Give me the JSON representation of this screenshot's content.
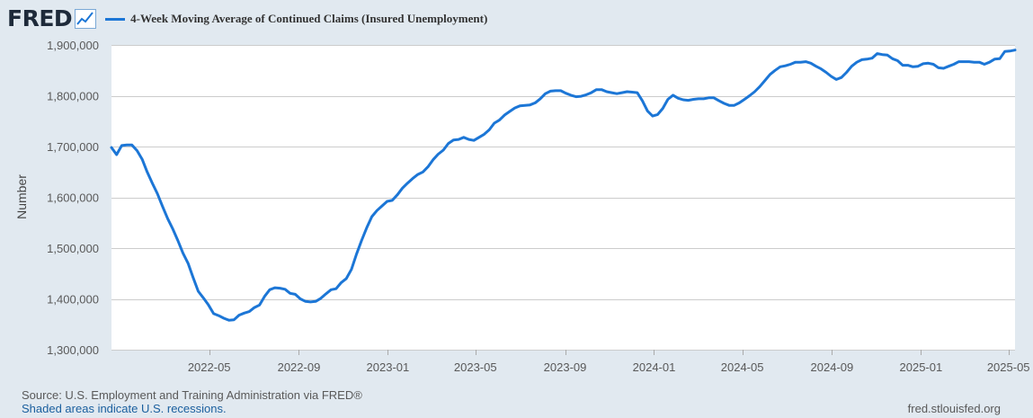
{
  "header": {
    "logo_text": "FRED",
    "logo_icon": "line-chart-icon",
    "legend_label": "4-Week Moving Average of Continued Claims (Insured Unemployment)"
  },
  "colors": {
    "series": "#1c76d6",
    "background": "#e1e9f0",
    "plot_background": "#ffffff",
    "grid": "#cccccc"
  },
  "footer": {
    "source": "Source: U.S. Employment and Training Administration via FRED®",
    "recessions_note": "Shaded areas indicate U.S. recessions.",
    "url": "fred.stlouisfed.org"
  },
  "chart_data": {
    "type": "line",
    "title": "4-Week Moving Average of Continued Claims (Insured Unemployment)",
    "xlabel": "",
    "ylabel": "Number",
    "ylim": [
      1300000,
      1900000
    ],
    "xlim": [
      "2021-12-18",
      "2025-05-10"
    ],
    "grid": true,
    "legend_position": "top-left",
    "y_ticks": [
      {
        "value": 1300000,
        "label": "1,300,000"
      },
      {
        "value": 1400000,
        "label": "1,400,000"
      },
      {
        "value": 1500000,
        "label": "1,500,000"
      },
      {
        "value": 1600000,
        "label": "1,600,000"
      },
      {
        "value": 1700000,
        "label": "1,700,000"
      },
      {
        "value": 1800000,
        "label": "1,800,000"
      },
      {
        "value": 1900000,
        "label": "1,900,000"
      }
    ],
    "x_ticks": [
      {
        "date": "2022-05-01",
        "label": "2022-05"
      },
      {
        "date": "2022-09-01",
        "label": "2022-09"
      },
      {
        "date": "2023-01-01",
        "label": "2023-01"
      },
      {
        "date": "2023-05-01",
        "label": "2023-05"
      },
      {
        "date": "2023-09-01",
        "label": "2023-09"
      },
      {
        "date": "2024-01-01",
        "label": "2024-01"
      },
      {
        "date": "2024-05-01",
        "label": "2024-05"
      },
      {
        "date": "2024-09-01",
        "label": "2024-09"
      },
      {
        "date": "2025-01-01",
        "label": "2025-01"
      },
      {
        "date": "2025-05-01",
        "label": "2025-05"
      }
    ],
    "series": [
      {
        "name": "4-Week Moving Average of Continued Claims (Insured Unemployment)",
        "points": [
          [
            "2021-12-18",
            1698000
          ],
          [
            "2021-12-25",
            1684000
          ],
          [
            "2022-01-01",
            1702000
          ],
          [
            "2022-01-08",
            1703000
          ],
          [
            "2022-01-15",
            1703000
          ],
          [
            "2022-01-22",
            1692000
          ],
          [
            "2022-01-29",
            1675000
          ],
          [
            "2022-02-05",
            1650000
          ],
          [
            "2022-02-12",
            1628000
          ],
          [
            "2022-02-19",
            1607000
          ],
          [
            "2022-02-26",
            1582000
          ],
          [
            "2022-03-05",
            1558000
          ],
          [
            "2022-03-12",
            1538000
          ],
          [
            "2022-03-19",
            1515000
          ],
          [
            "2022-03-26",
            1490000
          ],
          [
            "2022-04-02",
            1470000
          ],
          [
            "2022-04-09",
            1442000
          ],
          [
            "2022-04-16",
            1415000
          ],
          [
            "2022-04-23",
            1402000
          ],
          [
            "2022-04-30",
            1388000
          ],
          [
            "2022-05-07",
            1371000
          ],
          [
            "2022-05-14",
            1367000
          ],
          [
            "2022-05-21",
            1362000
          ],
          [
            "2022-05-28",
            1358000
          ],
          [
            "2022-06-04",
            1359000
          ],
          [
            "2022-06-11",
            1368000
          ],
          [
            "2022-06-18",
            1372000
          ],
          [
            "2022-06-25",
            1375000
          ],
          [
            "2022-07-02",
            1383000
          ],
          [
            "2022-07-09",
            1388000
          ],
          [
            "2022-07-16",
            1405000
          ],
          [
            "2022-07-23",
            1418000
          ],
          [
            "2022-07-30",
            1422000
          ],
          [
            "2022-08-06",
            1421000
          ],
          [
            "2022-08-13",
            1419000
          ],
          [
            "2022-08-20",
            1411000
          ],
          [
            "2022-08-27",
            1409000
          ],
          [
            "2022-09-03",
            1400000
          ],
          [
            "2022-09-10",
            1395000
          ],
          [
            "2022-09-17",
            1394000
          ],
          [
            "2022-09-24",
            1395000
          ],
          [
            "2022-10-01",
            1401000
          ],
          [
            "2022-10-08",
            1410000
          ],
          [
            "2022-10-15",
            1418000
          ],
          [
            "2022-10-22",
            1420000
          ],
          [
            "2022-10-29",
            1432000
          ],
          [
            "2022-11-05",
            1440000
          ],
          [
            "2022-11-12",
            1458000
          ],
          [
            "2022-11-19",
            1488000
          ],
          [
            "2022-11-26",
            1515000
          ],
          [
            "2022-12-03",
            1540000
          ],
          [
            "2022-12-10",
            1562000
          ],
          [
            "2022-12-17",
            1574000
          ],
          [
            "2022-12-24",
            1583000
          ],
          [
            "2022-12-31",
            1592000
          ],
          [
            "2023-01-07",
            1594000
          ],
          [
            "2023-01-14",
            1605000
          ],
          [
            "2023-01-21",
            1618000
          ],
          [
            "2023-01-28",
            1628000
          ],
          [
            "2023-02-04",
            1637000
          ],
          [
            "2023-02-11",
            1645000
          ],
          [
            "2023-02-18",
            1650000
          ],
          [
            "2023-02-25",
            1660000
          ],
          [
            "2023-03-04",
            1674000
          ],
          [
            "2023-03-11",
            1685000
          ],
          [
            "2023-03-18",
            1693000
          ],
          [
            "2023-03-25",
            1706000
          ],
          [
            "2023-04-01",
            1713000
          ],
          [
            "2023-04-08",
            1714000
          ],
          [
            "2023-04-15",
            1718000
          ],
          [
            "2023-04-22",
            1714000
          ],
          [
            "2023-04-29",
            1712000
          ],
          [
            "2023-05-06",
            1718000
          ],
          [
            "2023-05-13",
            1724000
          ],
          [
            "2023-05-20",
            1733000
          ],
          [
            "2023-05-27",
            1746000
          ],
          [
            "2023-06-03",
            1752000
          ],
          [
            "2023-06-10",
            1762000
          ],
          [
            "2023-06-17",
            1769000
          ],
          [
            "2023-06-24",
            1776000
          ],
          [
            "2023-07-01",
            1780000
          ],
          [
            "2023-07-08",
            1781000
          ],
          [
            "2023-07-15",
            1782000
          ],
          [
            "2023-07-22",
            1786000
          ],
          [
            "2023-07-29",
            1794000
          ],
          [
            "2023-08-05",
            1804000
          ],
          [
            "2023-08-12",
            1809000
          ],
          [
            "2023-08-19",
            1810000
          ],
          [
            "2023-08-26",
            1810000
          ],
          [
            "2023-09-02",
            1805000
          ],
          [
            "2023-09-09",
            1801000
          ],
          [
            "2023-09-16",
            1798000
          ],
          [
            "2023-09-23",
            1799000
          ],
          [
            "2023-09-30",
            1802000
          ],
          [
            "2023-10-07",
            1806000
          ],
          [
            "2023-10-14",
            1812000
          ],
          [
            "2023-10-21",
            1812000
          ],
          [
            "2023-10-28",
            1808000
          ],
          [
            "2023-11-04",
            1806000
          ],
          [
            "2023-11-11",
            1804000
          ],
          [
            "2023-11-18",
            1806000
          ],
          [
            "2023-11-25",
            1808000
          ],
          [
            "2023-12-02",
            1807000
          ],
          [
            "2023-12-09",
            1806000
          ],
          [
            "2023-12-16",
            1790000
          ],
          [
            "2023-12-23",
            1770000
          ],
          [
            "2023-12-30",
            1760000
          ],
          [
            "2024-01-06",
            1763000
          ],
          [
            "2024-01-13",
            1775000
          ],
          [
            "2024-01-20",
            1793000
          ],
          [
            "2024-01-27",
            1801000
          ],
          [
            "2024-02-03",
            1795000
          ],
          [
            "2024-02-10",
            1792000
          ],
          [
            "2024-02-17",
            1791000
          ],
          [
            "2024-02-24",
            1793000
          ],
          [
            "2024-03-02",
            1794000
          ],
          [
            "2024-03-09",
            1794000
          ],
          [
            "2024-03-16",
            1796000
          ],
          [
            "2024-03-23",
            1796000
          ],
          [
            "2024-03-30",
            1790000
          ],
          [
            "2024-04-06",
            1785000
          ],
          [
            "2024-04-13",
            1781000
          ],
          [
            "2024-04-20",
            1781000
          ],
          [
            "2024-04-27",
            1786000
          ],
          [
            "2024-05-04",
            1793000
          ],
          [
            "2024-05-11",
            1800000
          ],
          [
            "2024-05-18",
            1808000
          ],
          [
            "2024-05-25",
            1818000
          ],
          [
            "2024-06-01",
            1830000
          ],
          [
            "2024-06-08",
            1842000
          ],
          [
            "2024-06-15",
            1850000
          ],
          [
            "2024-06-22",
            1857000
          ],
          [
            "2024-06-29",
            1859000
          ],
          [
            "2024-07-06",
            1862000
          ],
          [
            "2024-07-13",
            1866000
          ],
          [
            "2024-07-20",
            1866000
          ],
          [
            "2024-07-27",
            1867000
          ],
          [
            "2024-08-03",
            1864000
          ],
          [
            "2024-08-10",
            1858000
          ],
          [
            "2024-08-17",
            1853000
          ],
          [
            "2024-08-24",
            1846000
          ],
          [
            "2024-08-31",
            1838000
          ],
          [
            "2024-09-07",
            1832000
          ],
          [
            "2024-09-14",
            1836000
          ],
          [
            "2024-09-21",
            1846000
          ],
          [
            "2024-09-28",
            1858000
          ],
          [
            "2024-10-05",
            1866000
          ],
          [
            "2024-10-12",
            1871000
          ],
          [
            "2024-10-19",
            1872000
          ],
          [
            "2024-10-26",
            1874000
          ],
          [
            "2024-11-02",
            1883000
          ],
          [
            "2024-11-09",
            1881000
          ],
          [
            "2024-11-16",
            1880000
          ],
          [
            "2024-11-23",
            1873000
          ],
          [
            "2024-11-30",
            1869000
          ],
          [
            "2024-12-07",
            1860000
          ],
          [
            "2024-12-14",
            1860000
          ],
          [
            "2024-12-21",
            1857000
          ],
          [
            "2024-12-28",
            1858000
          ],
          [
            "2025-01-04",
            1863000
          ],
          [
            "2025-01-11",
            1864000
          ],
          [
            "2025-01-18",
            1862000
          ],
          [
            "2025-01-25",
            1855000
          ],
          [
            "2025-02-01",
            1854000
          ],
          [
            "2025-02-08",
            1858000
          ],
          [
            "2025-02-15",
            1862000
          ],
          [
            "2025-02-22",
            1867000
          ],
          [
            "2025-03-01",
            1867000
          ],
          [
            "2025-03-08",
            1867000
          ],
          [
            "2025-03-15",
            1866000
          ],
          [
            "2025-03-22",
            1866000
          ],
          [
            "2025-03-29",
            1862000
          ],
          [
            "2025-04-05",
            1866000
          ],
          [
            "2025-04-12",
            1872000
          ],
          [
            "2025-04-19",
            1873000
          ],
          [
            "2025-04-26",
            1887000
          ],
          [
            "2025-05-03",
            1888000
          ],
          [
            "2025-05-10",
            1890000
          ]
        ]
      }
    ]
  }
}
